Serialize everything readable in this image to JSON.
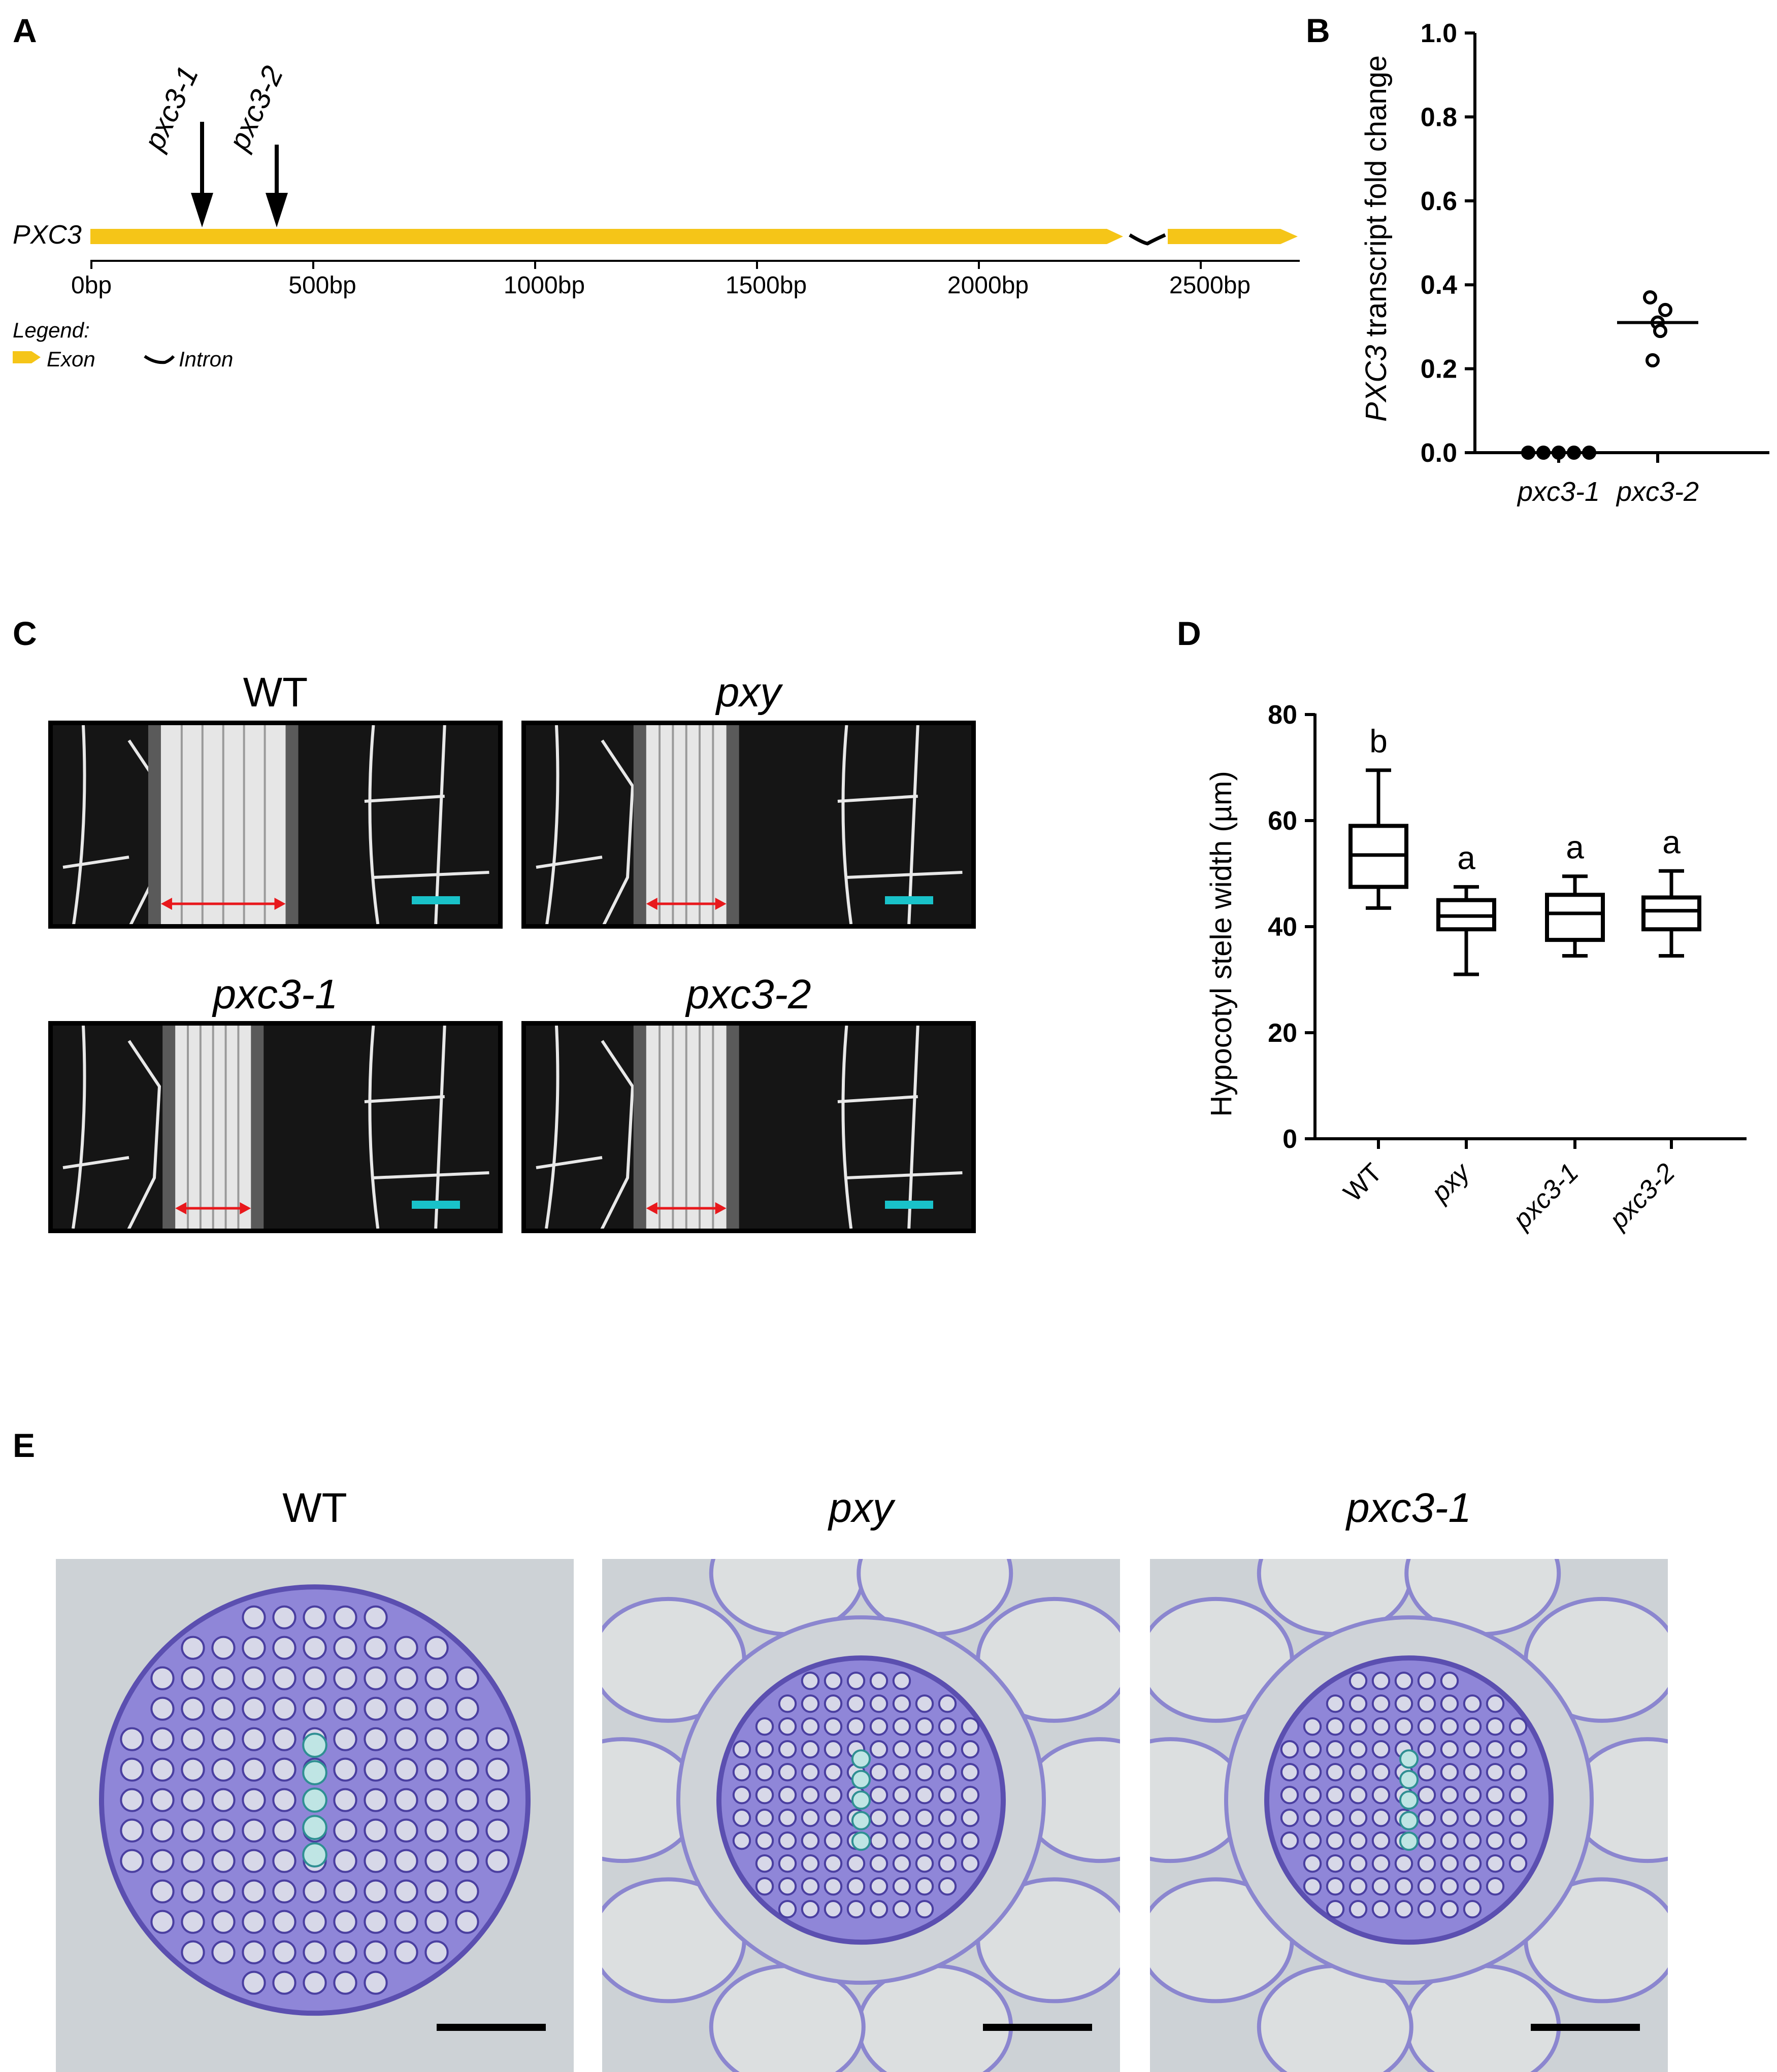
{
  "panel_labels": {
    "a": "A",
    "b": "B",
    "c": "C",
    "d": "D",
    "e": "E"
  },
  "gene_map": {
    "gene_label": "PXC3",
    "mutations": [
      "pxc3-1",
      "pxc3-2"
    ],
    "axis_ticks": [
      "0bp",
      "500bp",
      "1000bp",
      "1500bp",
      "2000bp",
      "2500bp"
    ],
    "legend_title": "Legend:",
    "legend_exon": "Exon",
    "legend_intron": "Intron",
    "colors": {
      "exon": "#f5c518",
      "intron": "#000000"
    }
  },
  "chart_data": [
    {
      "type": "scatter",
      "panel": "B",
      "ylabel_italic": "PXC3",
      "ylabel_rest": " transcript fold change",
      "categories": [
        "pxc3-1",
        "pxc3-2"
      ],
      "ylim": [
        0,
        1.0
      ],
      "yticks": [
        "0.0",
        "0.2",
        "0.4",
        "0.6",
        "0.8",
        "1.0"
      ],
      "points": [
        [
          0.0,
          0.0,
          0.0,
          0.0,
          0.0
        ],
        [
          0.37,
          0.34,
          0.31,
          0.29,
          0.22
        ]
      ],
      "means": [
        0.0,
        0.31
      ],
      "markers": [
        "filled",
        "open"
      ]
    },
    {
      "type": "box",
      "panel": "D",
      "ylabel": "Hypocotyl stele width (µm)",
      "categories": [
        "WT",
        "pxy",
        "pxc3-1",
        "pxc3-2"
      ],
      "ylim": [
        0,
        80
      ],
      "yticks": [
        "0",
        "20",
        "40",
        "60",
        "80"
      ],
      "boxes": [
        {
          "min": 43.5,
          "q1": 47.5,
          "median": 53.5,
          "q3": 59,
          "max": 69.5
        },
        {
          "min": 31,
          "q1": 39.5,
          "median": 42,
          "q3": 45,
          "max": 47.5
        },
        {
          "min": 34.5,
          "q1": 37.5,
          "median": 42.5,
          "q3": 46,
          "max": 49.5
        },
        {
          "min": 34.5,
          "q1": 39.5,
          "median": 43,
          "q3": 45.5,
          "max": 50.5
        }
      ],
      "significance": [
        "b",
        "a",
        "a",
        "a"
      ]
    }
  ],
  "panel_c": {
    "titles": [
      "WT",
      "pxy",
      "pxc3-1",
      "pxc3-2"
    ],
    "stele_fraction": [
      0.28,
      0.18,
      0.17,
      0.18
    ],
    "colors": {
      "arrow": "#e8181c",
      "scale": "#19c2c9"
    }
  },
  "panel_e": {
    "titles": [
      "WT",
      "pxy",
      "pxc3-1"
    ]
  }
}
